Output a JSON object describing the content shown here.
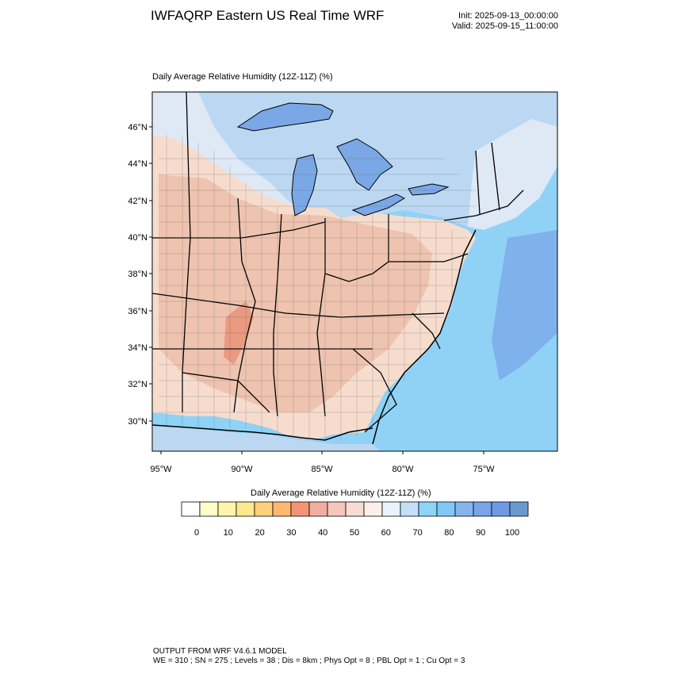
{
  "header": {
    "title": "IWFAQRP Eastern US Real Time WRF",
    "init": "Init: 2025-09-13_00:00:00",
    "valid": "Valid: 2025-09-15_11:00:00"
  },
  "map": {
    "title": "Daily Average Relative Humidity (12Z-11Z)   (%)",
    "lat_labels": [
      "46°N",
      "44°N",
      "42°N",
      "40°N",
      "38°N",
      "36°N",
      "34°N",
      "32°N",
      "30°N"
    ],
    "lon_labels": [
      "95°W",
      "90°W",
      "85°W",
      "80°W",
      "75°W"
    ],
    "colors": {
      "land_dry": "#eec3b0",
      "land_mid": "#f6dccd",
      "land_very_dry": "#e99a80",
      "moist": "#dfe8f5",
      "moist2": "#bcd7f2",
      "water": "#8fd2f6",
      "water_deep": "#7fb1ec",
      "lake": "#7aa8e6"
    }
  },
  "colorbar": {
    "title": "Daily Average Relative Humidity (12Z-11Z)  (%)",
    "tick_labels": [
      "0",
      "10",
      "20",
      "30",
      "40",
      "50",
      "60",
      "70",
      "80",
      "90",
      "100"
    ],
    "colors": [
      "#ffffff",
      "#ffffc8",
      "#fff5a8",
      "#ffe88c",
      "#ffd07a",
      "#ffb870",
      "#f49474",
      "#f0aea0",
      "#f4c6bc",
      "#f8dcd4",
      "#fdeeea",
      "#eaf2fe",
      "#c5dff9",
      "#8ed4f7",
      "#7fc8f5",
      "#84b5ee",
      "#7aa3ea",
      "#6d9ae5",
      "#6b98cf"
    ]
  },
  "footer": {
    "line1": "OUTPUT FROM WRF V4.6.1 MODEL",
    "line2": "WE = 310 ; SN = 275 ; Levels = 38 ; Dis = 8km ; Phys Opt = 8 ; PBL Opt = 1 ; Cu Opt = 3"
  }
}
